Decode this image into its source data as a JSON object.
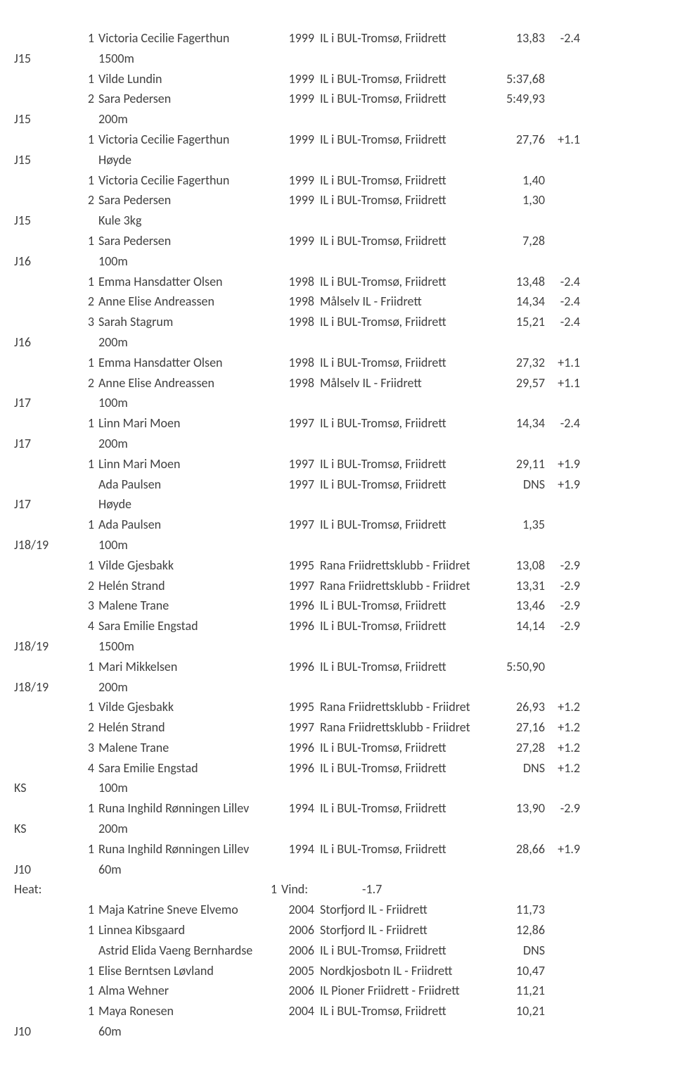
{
  "rows": [
    {
      "type": "result",
      "cat": "",
      "place": "1",
      "name": "Victoria Cecilie Fagerthun",
      "year": "1999",
      "club": "IL i BUL-Tromsø, Friidrett",
      "res": "13,83",
      "wind": "-2.4"
    },
    {
      "type": "event",
      "cat": "J15",
      "event": "1500m"
    },
    {
      "type": "result",
      "cat": "",
      "place": "1",
      "name": "Vilde Lundin",
      "year": "1999",
      "club": "IL i BUL-Tromsø, Friidrett",
      "res": "5:37,68",
      "wind": ""
    },
    {
      "type": "result",
      "cat": "",
      "place": "2",
      "name": "Sara Pedersen",
      "year": "1999",
      "club": "IL i BUL-Tromsø, Friidrett",
      "res": "5:49,93",
      "wind": ""
    },
    {
      "type": "event",
      "cat": "J15",
      "event": "200m"
    },
    {
      "type": "result",
      "cat": "",
      "place": "1",
      "name": "Victoria Cecilie Fagerthun",
      "year": "1999",
      "club": "IL i BUL-Tromsø, Friidrett",
      "res": "27,76",
      "wind": "+1.1"
    },
    {
      "type": "event",
      "cat": "J15",
      "event": "Høyde"
    },
    {
      "type": "result",
      "cat": "",
      "place": "1",
      "name": "Victoria Cecilie Fagerthun",
      "year": "1999",
      "club": "IL i BUL-Tromsø, Friidrett",
      "res": "1,40",
      "wind": ""
    },
    {
      "type": "result",
      "cat": "",
      "place": "2",
      "name": "Sara Pedersen",
      "year": "1999",
      "club": "IL i BUL-Tromsø, Friidrett",
      "res": "1,30",
      "wind": ""
    },
    {
      "type": "event",
      "cat": "J15",
      "event": "Kule 3kg"
    },
    {
      "type": "result",
      "cat": "",
      "place": "1",
      "name": "Sara Pedersen",
      "year": "1999",
      "club": "IL i BUL-Tromsø, Friidrett",
      "res": "7,28",
      "wind": ""
    },
    {
      "type": "event",
      "cat": "J16",
      "event": "100m"
    },
    {
      "type": "result",
      "cat": "",
      "place": "1",
      "name": "Emma Hansdatter Olsen",
      "year": "1998",
      "club": "IL i BUL-Tromsø, Friidrett",
      "res": "13,48",
      "wind": "-2.4"
    },
    {
      "type": "result",
      "cat": "",
      "place": "2",
      "name": "Anne Elise Andreassen",
      "year": "1998",
      "club": "Målselv IL - Friidrett",
      "res": "14,34",
      "wind": "-2.4"
    },
    {
      "type": "result",
      "cat": "",
      "place": "3",
      "name": "Sarah Stagrum",
      "year": "1998",
      "club": "IL i BUL-Tromsø, Friidrett",
      "res": "15,21",
      "wind": "-2.4"
    },
    {
      "type": "event",
      "cat": "J16",
      "event": "200m"
    },
    {
      "type": "result",
      "cat": "",
      "place": "1",
      "name": "Emma Hansdatter Olsen",
      "year": "1998",
      "club": "IL i BUL-Tromsø, Friidrett",
      "res": "27,32",
      "wind": "+1.1"
    },
    {
      "type": "result",
      "cat": "",
      "place": "2",
      "name": "Anne Elise Andreassen",
      "year": "1998",
      "club": "Målselv IL - Friidrett",
      "res": "29,57",
      "wind": "+1.1"
    },
    {
      "type": "event",
      "cat": "J17",
      "event": "100m"
    },
    {
      "type": "result",
      "cat": "",
      "place": "1",
      "name": "Linn Mari Moen",
      "year": "1997",
      "club": "IL i BUL-Tromsø, Friidrett",
      "res": "14,34",
      "wind": "-2.4"
    },
    {
      "type": "event",
      "cat": "J17",
      "event": "200m"
    },
    {
      "type": "result",
      "cat": "",
      "place": "1",
      "name": "Linn Mari Moen",
      "year": "1997",
      "club": "IL i BUL-Tromsø, Friidrett",
      "res": "29,11",
      "wind": "+1.9"
    },
    {
      "type": "result",
      "cat": "",
      "place": "",
      "name": "Ada Paulsen",
      "year": "1997",
      "club": "IL i BUL-Tromsø, Friidrett",
      "res": "DNS",
      "wind": "+1.9"
    },
    {
      "type": "event",
      "cat": "J17",
      "event": "Høyde"
    },
    {
      "type": "result",
      "cat": "",
      "place": "1",
      "name": "Ada Paulsen",
      "year": "1997",
      "club": "IL i BUL-Tromsø, Friidrett",
      "res": "1,35",
      "wind": ""
    },
    {
      "type": "event",
      "cat": "J18/19",
      "event": "100m"
    },
    {
      "type": "result",
      "cat": "",
      "place": "1",
      "name": "Vilde Gjesbakk",
      "year": "1995",
      "club": "Rana Friidrettsklubb - Friidret",
      "res": "13,08",
      "wind": "-2.9"
    },
    {
      "type": "result",
      "cat": "",
      "place": "2",
      "name": "Helén Strand",
      "year": "1997",
      "club": "Rana Friidrettsklubb - Friidret",
      "res": "13,31",
      "wind": "-2.9"
    },
    {
      "type": "result",
      "cat": "",
      "place": "3",
      "name": "Malene Trane",
      "year": "1996",
      "club": "IL i BUL-Tromsø, Friidrett",
      "res": "13,46",
      "wind": "-2.9"
    },
    {
      "type": "result",
      "cat": "",
      "place": "4",
      "name": "Sara Emilie Engstad",
      "year": "1996",
      "club": "IL i BUL-Tromsø, Friidrett",
      "res": "14,14",
      "wind": "-2.9"
    },
    {
      "type": "event",
      "cat": "J18/19",
      "event": "1500m"
    },
    {
      "type": "result",
      "cat": "",
      "place": "1",
      "name": "Mari Mikkelsen",
      "year": "1996",
      "club": "IL i BUL-Tromsø, Friidrett",
      "res": "5:50,90",
      "wind": ""
    },
    {
      "type": "event",
      "cat": "J18/19",
      "event": "200m"
    },
    {
      "type": "result",
      "cat": "",
      "place": "1",
      "name": "Vilde Gjesbakk",
      "year": "1995",
      "club": "Rana Friidrettsklubb - Friidret",
      "res": "26,93",
      "wind": "+1.2"
    },
    {
      "type": "result",
      "cat": "",
      "place": "2",
      "name": "Helén Strand",
      "year": "1997",
      "club": "Rana Friidrettsklubb - Friidret",
      "res": "27,16",
      "wind": "+1.2"
    },
    {
      "type": "result",
      "cat": "",
      "place": "3",
      "name": "Malene Trane",
      "year": "1996",
      "club": "IL i BUL-Tromsø, Friidrett",
      "res": "27,28",
      "wind": "+1.2"
    },
    {
      "type": "result",
      "cat": "",
      "place": "4",
      "name": "Sara Emilie Engstad",
      "year": "1996",
      "club": "IL i BUL-Tromsø, Friidrett",
      "res": "DNS",
      "wind": "+1.2"
    },
    {
      "type": "event",
      "cat": "KS",
      "event": "100m"
    },
    {
      "type": "result",
      "cat": "",
      "place": "1",
      "name": "Runa Inghild Rønningen Lillev",
      "year": "1994",
      "club": "IL i BUL-Tromsø, Friidrett",
      "res": "13,90",
      "wind": "-2.9"
    },
    {
      "type": "event",
      "cat": "KS",
      "event": "200m"
    },
    {
      "type": "result",
      "cat": "",
      "place": "1",
      "name": "Runa Inghild Rønningen Lillev",
      "year": "1994",
      "club": "IL i BUL-Tromsø, Friidrett",
      "res": "28,66",
      "wind": "+1.9"
    },
    {
      "type": "event",
      "cat": "J10",
      "event": "60m"
    },
    {
      "type": "heat",
      "heat_label": "Heat:",
      "heat_num": "1",
      "vind_label": "Vind:",
      "vind_val": "-1.7"
    },
    {
      "type": "result",
      "cat": "",
      "place": "1",
      "name": "Maja Katrine Sneve Elvemo",
      "year": "2004",
      "club": "Storfjord IL - Friidrett",
      "res": "11,73",
      "wind": ""
    },
    {
      "type": "result",
      "cat": "",
      "place": "1",
      "name": "Linnea Kibsgaard",
      "year": "2006",
      "club": "Storfjord IL - Friidrett",
      "res": "12,86",
      "wind": ""
    },
    {
      "type": "result",
      "cat": "",
      "place": "",
      "name": "Astrid Elida Vaeng Bernhardse",
      "year": "2006",
      "club": "IL i BUL-Tromsø, Friidrett",
      "res": "DNS",
      "wind": ""
    },
    {
      "type": "result",
      "cat": "",
      "place": "1",
      "name": "Elise Berntsen Løvland",
      "year": "2005",
      "club": "Nordkjosbotn IL - Friidrett",
      "res": "10,47",
      "wind": ""
    },
    {
      "type": "result",
      "cat": "",
      "place": "1",
      "name": "Alma Wehner",
      "year": "2006",
      "club": "IL Pioner Friidrett - Friidrett",
      "res": "11,21",
      "wind": ""
    },
    {
      "type": "result",
      "cat": "",
      "place": "1",
      "name": "Maya Ronesen",
      "year": "2004",
      "club": "IL i BUL-Tromsø, Friidrett",
      "res": "10,21",
      "wind": ""
    },
    {
      "type": "event",
      "cat": "J10",
      "event": "60m"
    }
  ]
}
